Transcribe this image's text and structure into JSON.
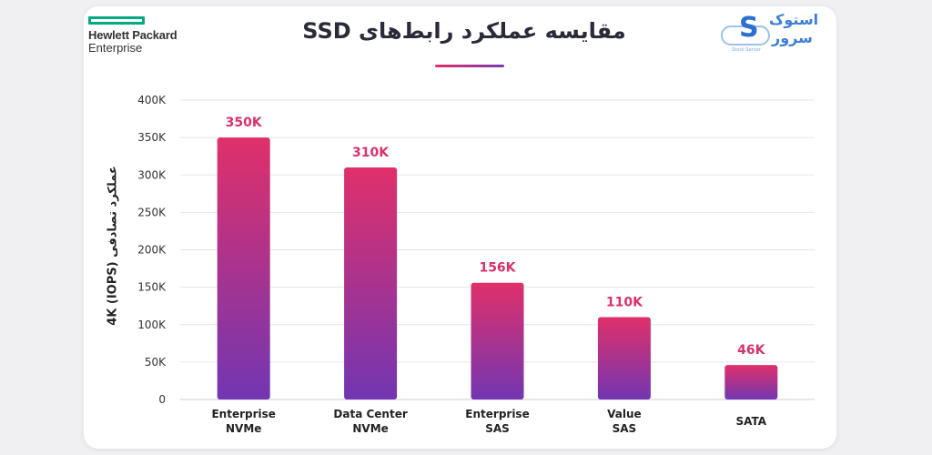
{
  "header": {
    "title": "مقایسه عملکرد رابط‌های SSD",
    "left_logo": {
      "line1": "Hewlett Packard",
      "line2": "Enterprise",
      "color": "#01a982"
    },
    "right_logo": {
      "line1": "استوک",
      "line2": "سرور",
      "subtitle": "Stock Server",
      "color": "#3d7fd6"
    }
  },
  "colors": {
    "bar_top": "#e0306a",
    "bar_bottom": "#7236b2",
    "value_label": "#d8316e",
    "grid": "#e6e6ec"
  },
  "chart_data": {
    "type": "bar",
    "title": "مقایسه عملکرد رابط‌های SSD",
    "ylabel": "عملکرد تصادفی 4K (IOPS)",
    "xlabel": "",
    "ylim": [
      0,
      400000
    ],
    "yticks": [
      0,
      50000,
      100000,
      150000,
      200000,
      250000,
      300000,
      350000,
      400000
    ],
    "ytick_labels": [
      "0",
      "50K",
      "100K",
      "150K",
      "200K",
      "250K",
      "300K",
      "350K",
      "400K"
    ],
    "categories": [
      [
        "Enterprise",
        "NVMe"
      ],
      [
        "Data Center",
        "NVMe"
      ],
      [
        "Enterprise",
        "SAS"
      ],
      [
        "Value",
        "SAS"
      ],
      [
        "SATA"
      ]
    ],
    "values": [
      350000,
      310000,
      156000,
      110000,
      46000
    ],
    "value_labels": [
      "350K",
      "310K",
      "156K",
      "110K",
      "46K"
    ],
    "grid": true
  }
}
